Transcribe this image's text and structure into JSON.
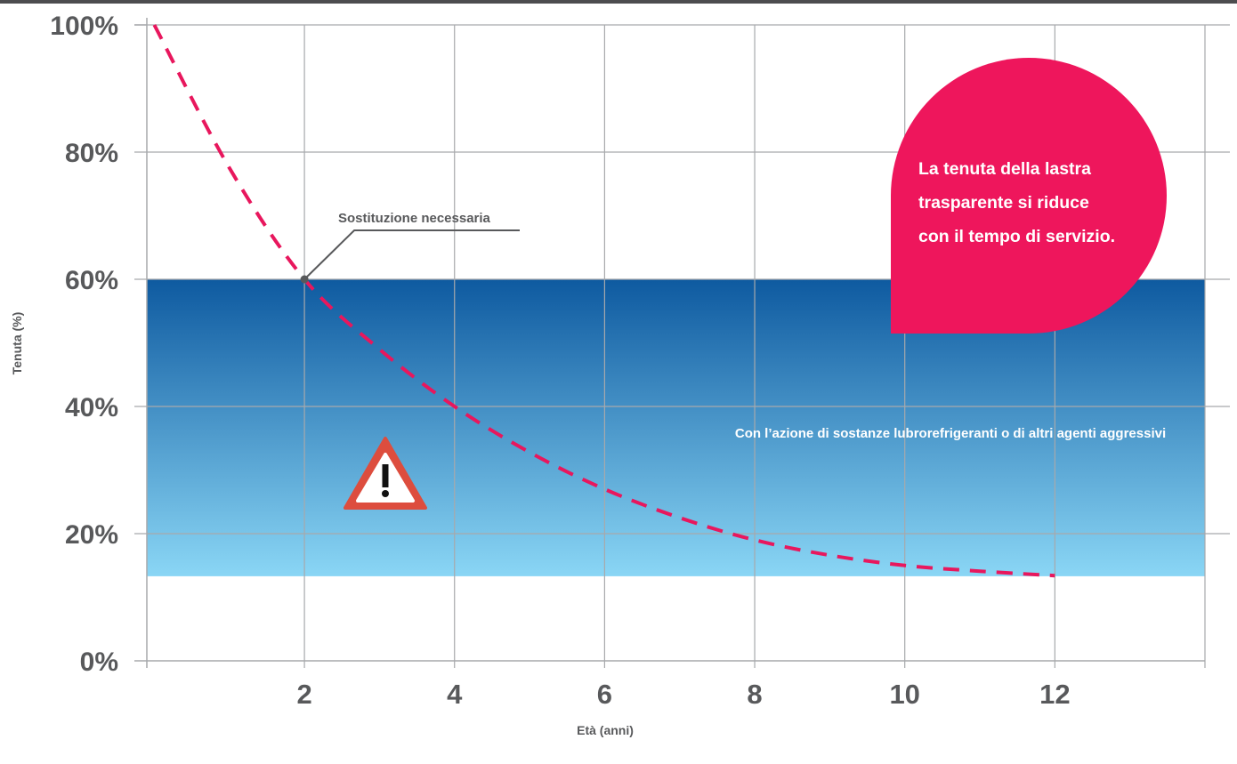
{
  "chart_data": {
    "type": "line",
    "x": [
      0,
      1,
      2,
      3,
      4,
      5,
      6,
      7,
      8,
      9,
      10,
      11,
      12
    ],
    "y": [
      100,
      77.5,
      60,
      49,
      40,
      32.8,
      27,
      22.5,
      19,
      16.6,
      15,
      14.1,
      13.4
    ],
    "xlabel": "Età (anni)",
    "ylabel": "Tenuta (%)",
    "xlim": [
      -0.1,
      14
    ],
    "ylim": [
      0,
      100
    ],
    "xticks": [
      2,
      4,
      6,
      8,
      10,
      12
    ],
    "xtick_labels": [
      "2",
      "4",
      "6",
      "8",
      "10",
      "12"
    ],
    "yticks": [
      0,
      20,
      40,
      60,
      80,
      100
    ],
    "ytick_labels": [
      "0%",
      "20%",
      "40%",
      "60%",
      "80%",
      "100%"
    ],
    "grid": true,
    "line_color": "#e8175d",
    "line_style": "dashed",
    "band": {
      "y_from": 13.3,
      "y_to": 60,
      "x_to": 14,
      "color_top": "#0e5aa0",
      "color_bottom": "#8ad6f5"
    },
    "annotations": {
      "replacement": {
        "text": "Sostituzione necessaria",
        "x": 2,
        "y": 60
      },
      "band_label": "Con l’azione di sostanze lubrorefrigeranti o di altri agenti aggressivi",
      "callout": [
        "La tenuta della lastra",
        "trasparente si riduce",
        "con il tempo di servizio."
      ],
      "callout_color": "#ee165c",
      "warning_icon": "warning-triangle-icon",
      "warning_color": "#dd4d3e"
    }
  }
}
